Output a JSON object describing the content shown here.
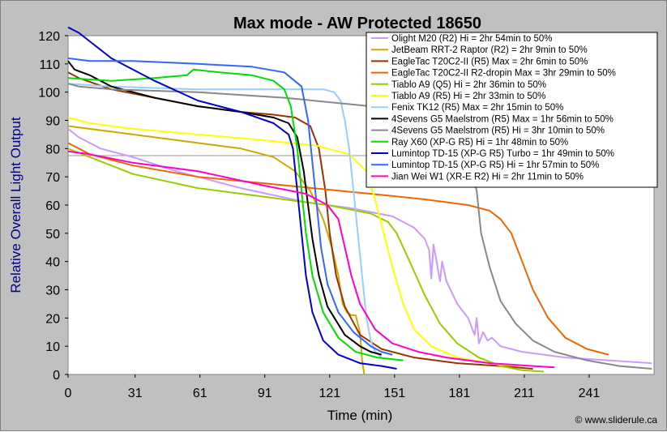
{
  "chart_data": {
    "type": "line",
    "title": "Max mode - AW Protected 18650",
    "xlabel": "Time (min)",
    "ylabel": "Relative Overall Light Output",
    "xlim": [
      0,
      271
    ],
    "ylim": [
      0,
      120
    ],
    "x_ticks": [
      0,
      31,
      61,
      91,
      121,
      151,
      181,
      211,
      241
    ],
    "y_ticks": [
      0,
      10,
      20,
      30,
      40,
      50,
      60,
      70,
      80,
      90,
      100,
      110,
      120
    ],
    "reference_line": 77.5,
    "credit": "© www.sliderule.ca",
    "legend_position": "top-right",
    "plot_background": "#ffffff",
    "outer_background": "#c0c0c0",
    "ylabel_color": "#000080",
    "series": [
      {
        "name": "Olight M20 (R2) Hi = 2hr 54min to 50%",
        "color": "#cc99ff",
        "points": [
          [
            0,
            87
          ],
          [
            5,
            84
          ],
          [
            15,
            80
          ],
          [
            30,
            77
          ],
          [
            50,
            72
          ],
          [
            80,
            66
          ],
          [
            110,
            61
          ],
          [
            130,
            59
          ],
          [
            150,
            56
          ],
          [
            160,
            52
          ],
          [
            165,
            48
          ],
          [
            167,
            44
          ],
          [
            168,
            34
          ],
          [
            169,
            46
          ],
          [
            170,
            42
          ],
          [
            172,
            33
          ],
          [
            173,
            40
          ],
          [
            175,
            33
          ],
          [
            180,
            25
          ],
          [
            185,
            20
          ],
          [
            188,
            14
          ],
          [
            189,
            20
          ],
          [
            190,
            11
          ],
          [
            192,
            15
          ],
          [
            194,
            12
          ],
          [
            196,
            13
          ],
          [
            200,
            10
          ],
          [
            210,
            8
          ],
          [
            230,
            6
          ],
          [
            250,
            5
          ],
          [
            270,
            4
          ]
        ]
      },
      {
        "name": "JetBeam RRT-2 Raptor (R2) = 2hr 9min to 50%",
        "color": "#ccaa00",
        "points": [
          [
            0,
            88
          ],
          [
            20,
            86
          ],
          [
            40,
            84
          ],
          [
            60,
            82
          ],
          [
            80,
            80
          ],
          [
            95,
            77
          ],
          [
            105,
            72
          ],
          [
            112,
            65
          ],
          [
            118,
            55
          ],
          [
            122,
            45
          ],
          [
            125,
            35
          ],
          [
            127,
            25
          ],
          [
            129,
            22
          ],
          [
            131,
            21
          ],
          [
            133,
            21
          ],
          [
            135,
            15
          ],
          [
            136,
            5
          ],
          [
            137,
            0
          ]
        ]
      },
      {
        "name": "EagleTac T20C2-II (R5) Max = 2hr 6min to 50%",
        "color": "#993300",
        "points": [
          [
            0,
            107
          ],
          [
            5,
            105
          ],
          [
            20,
            101
          ],
          [
            40,
            98
          ],
          [
            60,
            95
          ],
          [
            80,
            93
          ],
          [
            95,
            92
          ],
          [
            105,
            91
          ],
          [
            112,
            88
          ],
          [
            116,
            80
          ],
          [
            119,
            65
          ],
          [
            121,
            50
          ],
          [
            124,
            35
          ],
          [
            128,
            24
          ],
          [
            135,
            14
          ],
          [
            145,
            9
          ],
          [
            160,
            6
          ],
          [
            180,
            4
          ],
          [
            200,
            3
          ],
          [
            215,
            2
          ]
        ]
      },
      {
        "name": "EagleTac T20C2-II R2-dropin Max = 3hr 29min to 50%",
        "color": "#ee6600",
        "points": [
          [
            0,
            82
          ],
          [
            10,
            78
          ],
          [
            30,
            74
          ],
          [
            60,
            70
          ],
          [
            100,
            67
          ],
          [
            140,
            64
          ],
          [
            165,
            62
          ],
          [
            185,
            60
          ],
          [
            195,
            58
          ],
          [
            200,
            55
          ],
          [
            205,
            50
          ],
          [
            210,
            40
          ],
          [
            215,
            30
          ],
          [
            222,
            20
          ],
          [
            230,
            13
          ],
          [
            240,
            9
          ],
          [
            250,
            7
          ]
        ]
      },
      {
        "name": "Tiablo A9 (Q5) Hi = 2hr 36min to 50%",
        "color": "#99cc00",
        "points": [
          [
            0,
            80
          ],
          [
            10,
            77
          ],
          [
            30,
            71
          ],
          [
            60,
            66
          ],
          [
            90,
            63
          ],
          [
            120,
            60
          ],
          [
            140,
            57
          ],
          [
            148,
            54
          ],
          [
            152,
            50
          ],
          [
            158,
            40
          ],
          [
            165,
            28
          ],
          [
            172,
            18
          ],
          [
            180,
            11
          ],
          [
            190,
            6
          ],
          [
            200,
            3
          ],
          [
            210,
            1.5
          ],
          [
            220,
            1
          ]
        ]
      },
      {
        "name": "Tiablo A9 (R5) Hi = 2hr 33min to 50%",
        "color": "#ffff00",
        "points": [
          [
            0,
            91
          ],
          [
            10,
            89
          ],
          [
            30,
            87
          ],
          [
            60,
            85
          ],
          [
            90,
            83
          ],
          [
            115,
            81
          ],
          [
            130,
            78
          ],
          [
            138,
            72
          ],
          [
            142,
            62
          ],
          [
            146,
            50
          ],
          [
            150,
            38
          ],
          [
            155,
            25
          ],
          [
            160,
            16
          ],
          [
            168,
            10
          ],
          [
            180,
            6
          ],
          [
            195,
            4
          ],
          [
            210,
            3
          ]
        ]
      },
      {
        "name": "Fenix TK12 (R5) Max = 2hr 15min to 50%",
        "color": "#99ccff",
        "points": [
          [
            0,
            103
          ],
          [
            20,
            102
          ],
          [
            60,
            101
          ],
          [
            100,
            101
          ],
          [
            118,
            101
          ],
          [
            123,
            100
          ],
          [
            126,
            97
          ],
          [
            128,
            90
          ],
          [
            130,
            80
          ],
          [
            132,
            65
          ],
          [
            134,
            50
          ],
          [
            136,
            35
          ],
          [
            138,
            20
          ],
          [
            140,
            12
          ],
          [
            142,
            8
          ],
          [
            145,
            6
          ]
        ]
      },
      {
        "name": "4Sevens G5 Maelstrom (R5) Max = 1hr 56min to 50%",
        "color": "#000000",
        "points": [
          [
            0,
            111
          ],
          [
            3,
            108
          ],
          [
            10,
            106
          ],
          [
            20,
            102
          ],
          [
            40,
            98
          ],
          [
            60,
            95
          ],
          [
            80,
            93
          ],
          [
            95,
            91
          ],
          [
            102,
            89
          ],
          [
            106,
            84
          ],
          [
            109,
            72
          ],
          [
            111,
            60
          ],
          [
            113,
            48
          ],
          [
            116,
            35
          ],
          [
            120,
            24
          ],
          [
            128,
            14
          ],
          [
            135,
            10
          ],
          [
            140,
            8
          ],
          [
            145,
            7
          ]
        ]
      },
      {
        "name": "4Sevens G5 Maelstrom (R5) Hi = 3hr 10min to 50%",
        "color": "#888888",
        "points": [
          [
            0,
            103
          ],
          [
            5,
            102
          ],
          [
            20,
            101
          ],
          [
            60,
            100
          ],
          [
            100,
            98
          ],
          [
            140,
            95
          ],
          [
            165,
            92
          ],
          [
            175,
            90
          ],
          [
            182,
            85
          ],
          [
            186,
            75
          ],
          [
            189,
            65
          ],
          [
            191,
            50
          ],
          [
            195,
            38
          ],
          [
            200,
            26
          ],
          [
            207,
            18
          ],
          [
            215,
            12
          ],
          [
            225,
            8
          ],
          [
            240,
            5
          ],
          [
            255,
            3
          ],
          [
            270,
            2
          ]
        ]
      },
      {
        "name": "Ray X60 (XP-G R5) Hi = 1hr 48min to 50%",
        "color": "#00dd00",
        "points": [
          [
            0,
            105
          ],
          [
            20,
            104
          ],
          [
            40,
            105
          ],
          [
            55,
            106
          ],
          [
            58,
            108
          ],
          [
            70,
            107
          ],
          [
            85,
            106
          ],
          [
            95,
            104
          ],
          [
            100,
            101
          ],
          [
            103,
            95
          ],
          [
            106,
            80
          ],
          [
            108,
            65
          ],
          [
            110,
            50
          ],
          [
            113,
            35
          ],
          [
            118,
            22
          ],
          [
            125,
            13
          ],
          [
            133,
            8
          ],
          [
            143,
            6
          ],
          [
            155,
            5
          ]
        ]
      },
      {
        "name": "Lumintop TD-15 (XP-G R5) Turbo = 1hr 49min to 50%",
        "color": "#0000cc",
        "points": [
          [
            0,
            123
          ],
          [
            5,
            121
          ],
          [
            10,
            118
          ],
          [
            20,
            112
          ],
          [
            40,
            104
          ],
          [
            60,
            97
          ],
          [
            80,
            93
          ],
          [
            95,
            89
          ],
          [
            102,
            85
          ],
          [
            104,
            80
          ],
          [
            106,
            65
          ],
          [
            108,
            50
          ],
          [
            110,
            35
          ],
          [
            113,
            22
          ],
          [
            118,
            12
          ],
          [
            125,
            7
          ],
          [
            135,
            4
          ],
          [
            145,
            3
          ],
          [
            152,
            2
          ]
        ]
      },
      {
        "name": "Lumintop TD-15 (XP-G R5) Hi = 1hr 57min to 50%",
        "color": "#3366ff",
        "points": [
          [
            0,
            112
          ],
          [
            10,
            111
          ],
          [
            30,
            111
          ],
          [
            60,
            110
          ],
          [
            85,
            109
          ],
          [
            100,
            107
          ],
          [
            108,
            102
          ],
          [
            111,
            90
          ],
          [
            113,
            75
          ],
          [
            115,
            60
          ],
          [
            117,
            45
          ],
          [
            120,
            32
          ],
          [
            125,
            22
          ],
          [
            132,
            15
          ],
          [
            140,
            10
          ],
          [
            145,
            8
          ],
          [
            150,
            7
          ]
        ]
      },
      {
        "name": "Jian Wei W1 (XR-E R2) Hi = 2hr 11min to 50%",
        "color": "#ff00cc",
        "points": [
          [
            0,
            79
          ],
          [
            10,
            78
          ],
          [
            30,
            75
          ],
          [
            60,
            72
          ],
          [
            90,
            67
          ],
          [
            110,
            64
          ],
          [
            120,
            60
          ],
          [
            125,
            55
          ],
          [
            128,
            45
          ],
          [
            131,
            35
          ],
          [
            135,
            25
          ],
          [
            142,
            16
          ],
          [
            150,
            11
          ],
          [
            162,
            8
          ],
          [
            175,
            6
          ],
          [
            195,
            4
          ],
          [
            215,
            3
          ],
          [
            225,
            2.5
          ]
        ]
      }
    ]
  }
}
